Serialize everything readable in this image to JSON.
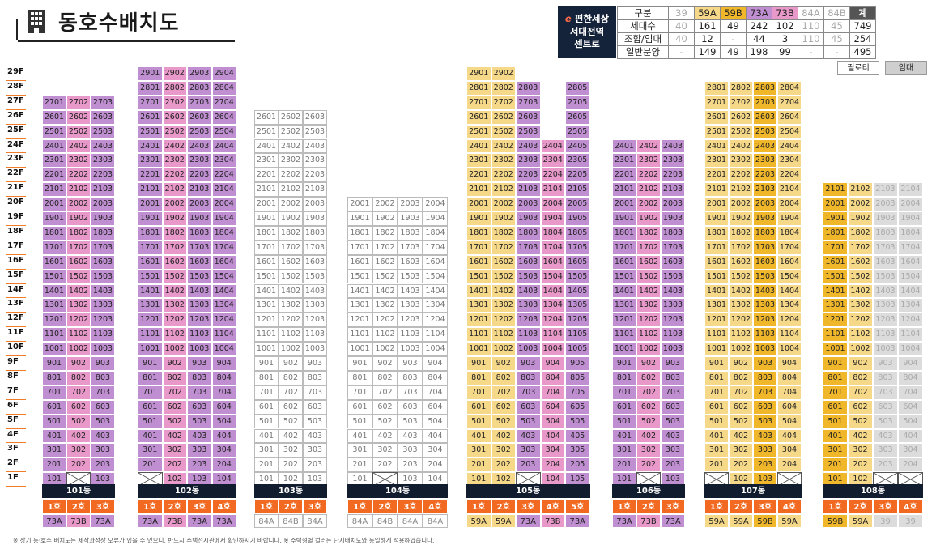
{
  "header": {
    "title": "동호수배치도",
    "badge": [
      "e 편한세상",
      "서대전역",
      "센트로"
    ],
    "badge_e": "e"
  },
  "summary": {
    "columns": [
      "구분",
      "39",
      "59A",
      "59B",
      "73A",
      "73B",
      "84A",
      "84B",
      "계"
    ],
    "rows": [
      {
        "label": "세대수",
        "values": [
          "40",
          "161",
          "49",
          "242",
          "102",
          "110",
          "45",
          "749"
        ]
      },
      {
        "label": "조합/임대",
        "values": [
          "40",
          "12",
          "-",
          "44",
          "3",
          "110",
          "45",
          "254"
        ]
      },
      {
        "label": "일반분양",
        "values": [
          "-",
          "149",
          "49",
          "198",
          "99",
          "-",
          "-",
          "495"
        ]
      }
    ]
  },
  "legend": {
    "public": "필로티",
    "rent": "임대"
  },
  "colors": {
    "73A": "#c08fd2",
    "73B": "#e898c9",
    "59A": "#f6d889",
    "59B": "#f1b72a",
    "84A": "#ffffff",
    "84B": "#ffffff",
    "39": "#dcdcdc",
    "rent": "#cfcfcf",
    "ho": "#f26a22",
    "label": "#111d2e"
  },
  "floors": [
    "29F",
    "28F",
    "27F",
    "26F",
    "25F",
    "24F",
    "23F",
    "22F",
    "21F",
    "20F",
    "19F",
    "18F",
    "17F",
    "16F",
    "15F",
    "14F",
    "13F",
    "12F",
    "11F",
    "10F",
    "9F",
    "8F",
    "7F",
    "6F",
    "5F",
    "4F",
    "3F",
    "2F",
    "1F"
  ],
  "buildings": [
    {
      "name": "101동",
      "ho": [
        "1호",
        "2호",
        "3호"
      ],
      "types": [
        "73A",
        "73B",
        "73A"
      ],
      "top": 27,
      "x_missing": [
        [
          1,
          2
        ]
      ],
      "rent": []
    },
    {
      "name": "102동",
      "ho": [
        "1호",
        "2호",
        "3호",
        "4호"
      ],
      "types": [
        "73A",
        "73B",
        "73A",
        "73A"
      ],
      "top": 29,
      "x_missing": [
        [
          1,
          1
        ]
      ],
      "rent": []
    },
    {
      "name": "103동",
      "ho": [
        "1호",
        "2호",
        "3호"
      ],
      "types": [
        "84A",
        "84B",
        "84A"
      ],
      "top": 26,
      "x_missing": [],
      "rent": [
        "all"
      ]
    },
    {
      "name": "104동",
      "ho": [
        "1호",
        "2호",
        "3호",
        "4호"
      ],
      "types": [
        "84A",
        "84B",
        "84A",
        "84A"
      ],
      "top": 20,
      "x_missing": [
        [
          1,
          2
        ]
      ],
      "rent": [
        "all"
      ]
    },
    {
      "name": "105동",
      "ho": [
        "1호",
        "2호",
        "3호",
        "4호",
        "5호"
      ],
      "types": [
        "59A",
        "59A",
        "73A",
        "73B",
        "73A"
      ],
      "top": 29,
      "x_missing": [
        [
          1,
          3
        ]
      ],
      "rent": []
    },
    {
      "name": "106동",
      "ho": [
        "1호",
        "2호",
        "3호"
      ],
      "types": [
        "73A",
        "73B",
        "73A"
      ],
      "top": 24,
      "x_missing": [
        [
          1,
          2
        ]
      ],
      "rent": []
    },
    {
      "name": "107동",
      "ho": [
        "1호",
        "2호",
        "3호",
        "4호"
      ],
      "types": [
        "59A",
        "59A",
        "59B",
        "59A"
      ],
      "top": 28,
      "x_missing": [
        [
          1,
          1
        ],
        [
          1,
          4
        ]
      ],
      "rent": []
    },
    {
      "name": "108동",
      "ho": [
        "1호",
        "2호",
        "3호",
        "4호"
      ],
      "types": [
        "59B",
        "59A",
        "39",
        "39"
      ],
      "top": 21,
      "x_missing": [
        [
          1,
          3
        ],
        [
          1,
          4
        ]
      ],
      "rent": []
    }
  ],
  "footnote": "※ 상기 동·호수 배치도는 제작과정상 오류가 있을 수 있으니, 반드시 주택전시관에서 확인하시기 바랍니다.   ※ 주택형별 컬러는 단지배치도와 동일하게 적용하였습니다."
}
